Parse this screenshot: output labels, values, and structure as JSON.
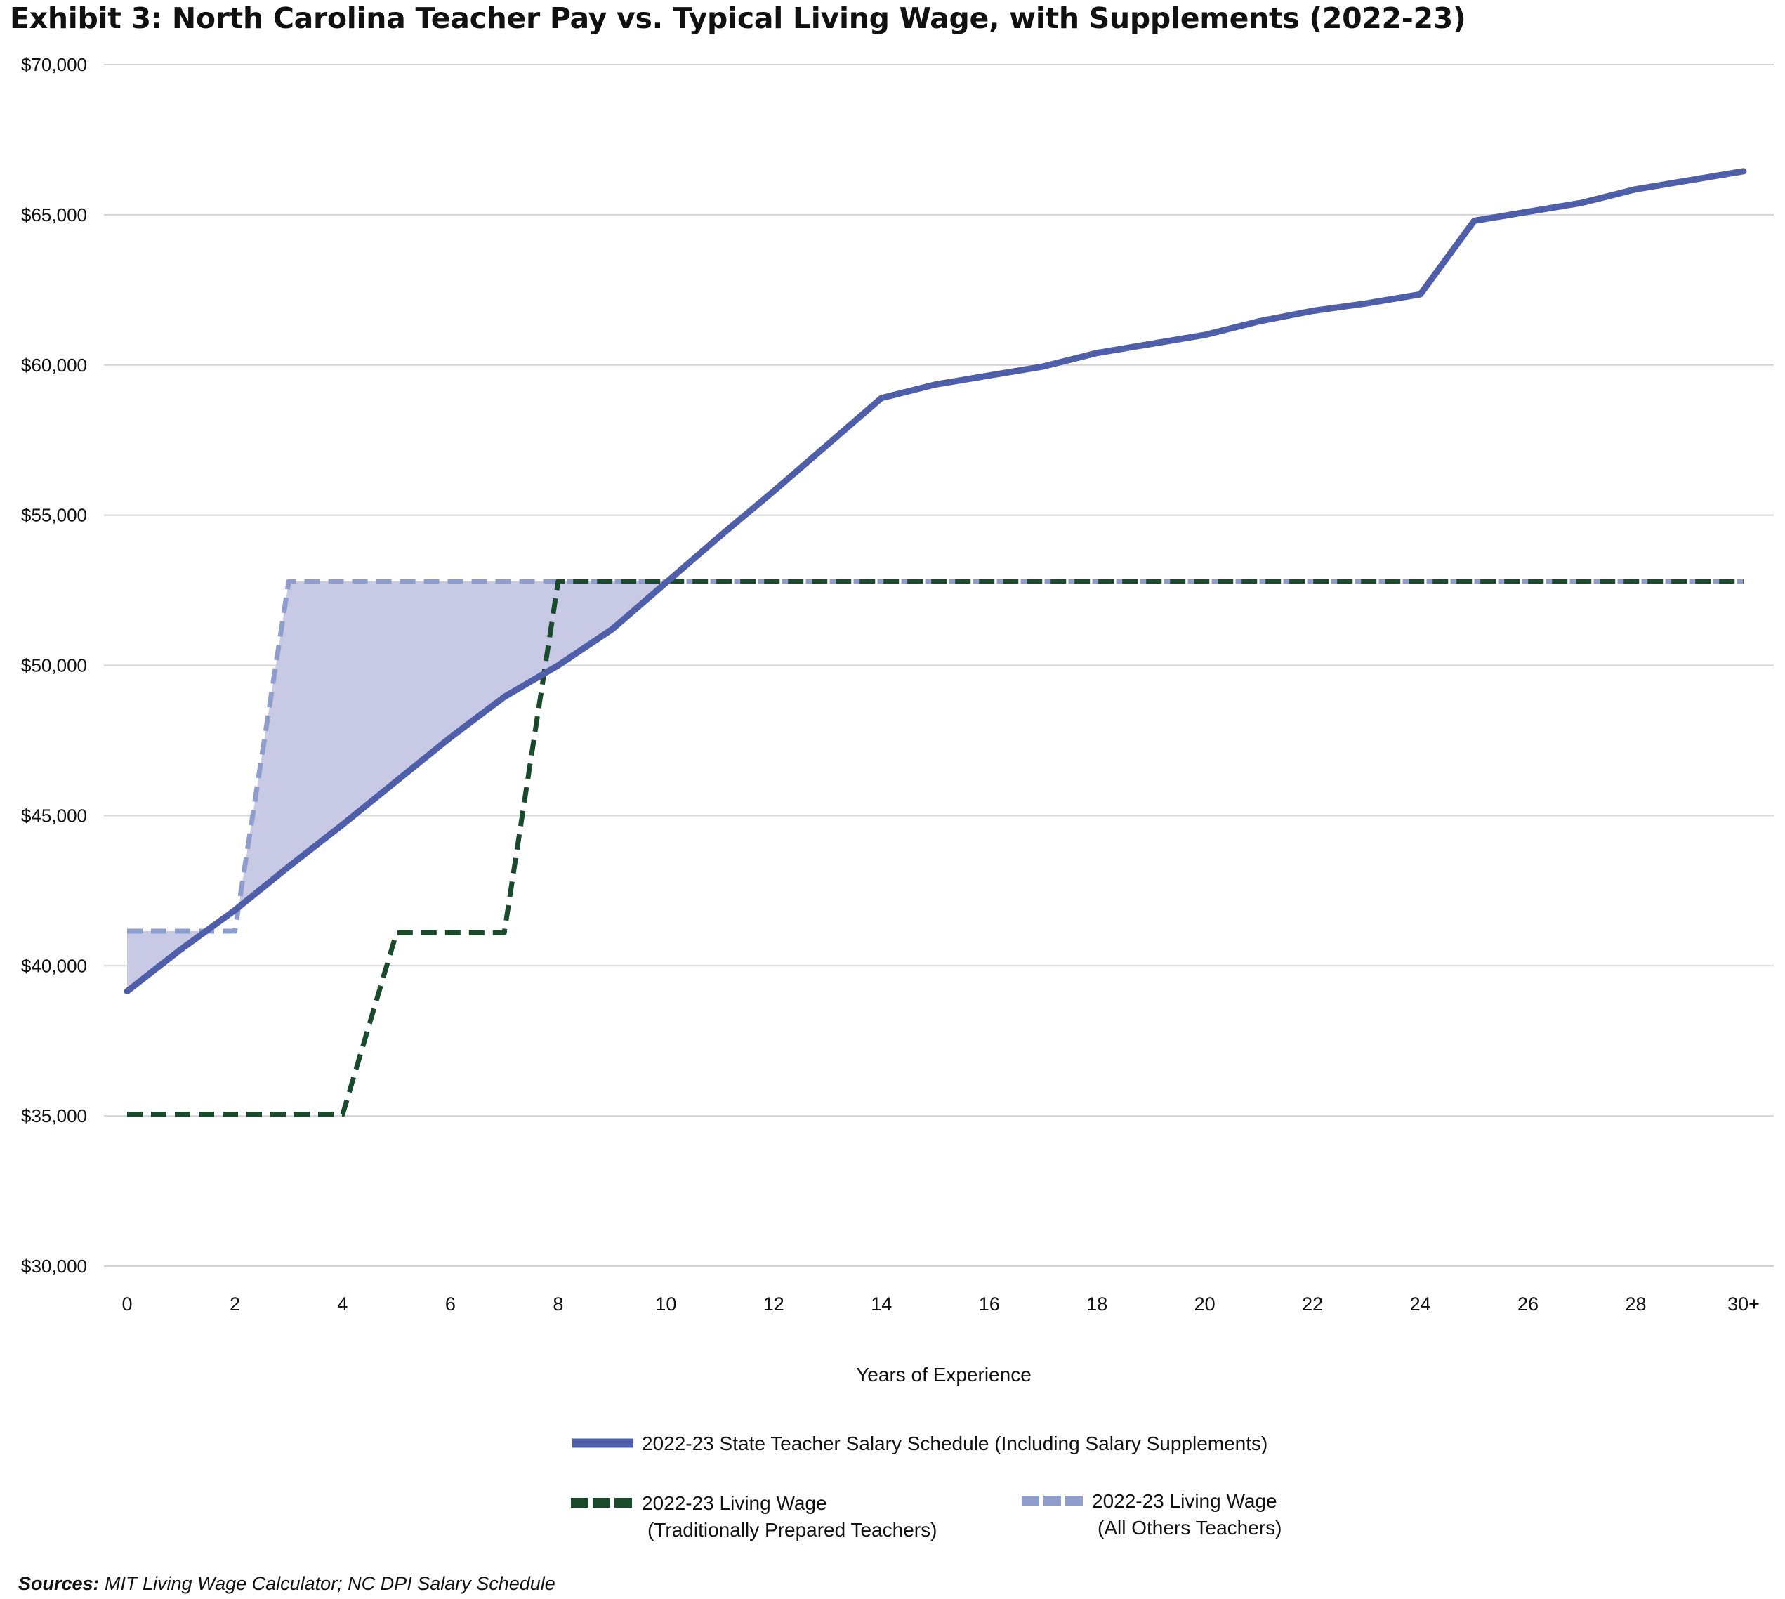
{
  "title": "Exhibit 3: North Carolina Teacher Pay vs. Typical Living Wage, with Supplements (2022-23)",
  "source": {
    "label": "Sources:",
    "text": " MIT Living Wage Calculator; NC DPI Salary Schedule"
  },
  "chart_data": {
    "type": "line",
    "title": "Exhibit 3: North Carolina Teacher Pay vs. Typical Living Wage, with Supplements (2022-23)",
    "xlabel": "Years of Experience",
    "ylabel": "",
    "x": [
      0,
      1,
      2,
      3,
      4,
      5,
      6,
      7,
      8,
      9,
      10,
      11,
      12,
      13,
      14,
      15,
      16,
      17,
      18,
      19,
      20,
      21,
      22,
      23,
      24,
      25,
      26,
      27,
      28,
      29,
      30
    ],
    "x_tick_labels": [
      "0",
      "2",
      "4",
      "6",
      "8",
      "10",
      "12",
      "14",
      "16",
      "18",
      "20",
      "22",
      "24",
      "26",
      "28",
      "30+"
    ],
    "ylim": [
      30000,
      70000
    ],
    "y_ticks": [
      30000,
      35000,
      40000,
      45000,
      50000,
      55000,
      60000,
      65000,
      70000
    ],
    "y_tick_labels": [
      "$30,000",
      "$35,000",
      "$40,000",
      "$45,000",
      "$50,000",
      "$55,000",
      "$60,000",
      "$65,000",
      "$70,000"
    ],
    "grid": "horizontal",
    "legend_position": "bottom",
    "series": [
      {
        "name": "2022-23 State Teacher Salary Schedule (Including Salary Supplements)",
        "style": "solid",
        "color": "#4f5ea9",
        "values": [
          39150,
          40550,
          41850,
          43300,
          44700,
          46150,
          47600,
          48950,
          50000,
          51200,
          52750,
          54300,
          55800,
          57350,
          58900,
          59350,
          59650,
          59950,
          60400,
          60700,
          61000,
          61450,
          61800,
          62050,
          62350,
          64800,
          65100,
          65400,
          65850,
          66150,
          66450
        ]
      },
      {
        "name": "2022-23 Living Wage\n(Traditionally Prepared Teachers)",
        "legend_lines": [
          "2022-23 Living Wage",
          "(Traditionally Prepared Teachers)"
        ],
        "style": "dashed",
        "color": "#1a4a2c",
        "values": [
          35050,
          35050,
          35050,
          35050,
          35050,
          41100,
          41100,
          41100,
          52800,
          52800,
          52800,
          52800,
          52800,
          52800,
          52800,
          52800,
          52800,
          52800,
          52800,
          52800,
          52800,
          52800,
          52800,
          52800,
          52800,
          52800,
          52800,
          52800,
          52800,
          52800,
          52800
        ]
      },
      {
        "name": "2022-23 Living Wage\n(All Others Teachers)",
        "legend_lines": [
          "2022-23 Living Wage",
          "(All Others Teachers)"
        ],
        "style": "dashed",
        "color": "#8f9dcd",
        "values": [
          41150,
          41150,
          41150,
          52800,
          52800,
          52800,
          52800,
          52800,
          52800,
          52800,
          52800,
          52800,
          52800,
          52800,
          52800,
          52800,
          52800,
          52800,
          52800,
          52800,
          52800,
          52800,
          52800,
          52800,
          52800,
          52800,
          52800,
          52800,
          52800,
          52800,
          52800
        ]
      }
    ],
    "shaded_area": {
      "between": [
        "2022-23 Living Wage\n(All Others Teachers)",
        "2022-23 State Teacher Salary Schedule (Including Salary Supplements)"
      ],
      "color": "#c8cae5"
    }
  }
}
